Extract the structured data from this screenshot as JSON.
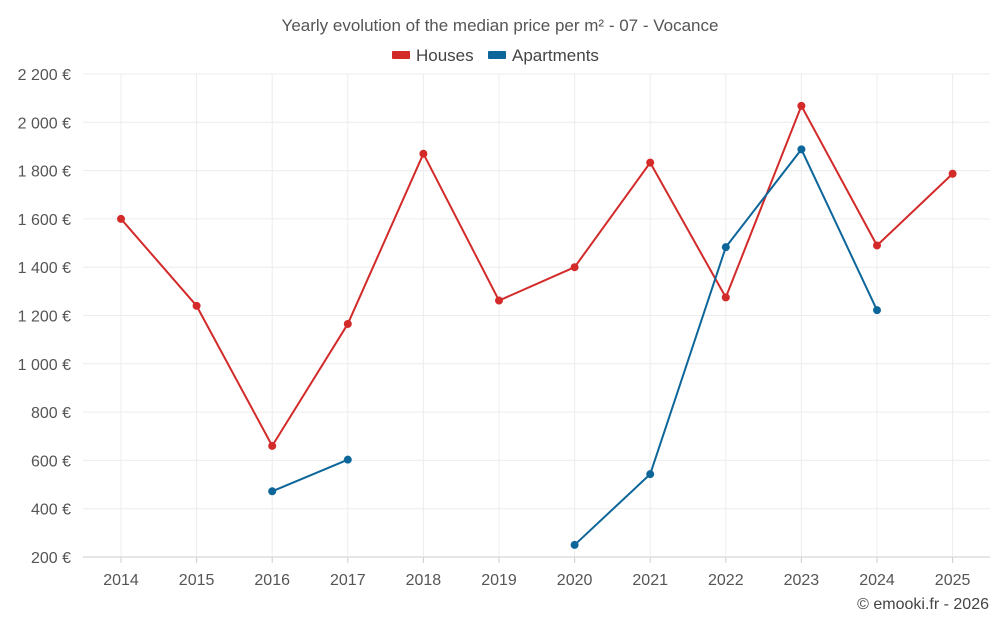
{
  "chart_data": {
    "type": "line",
    "title": "Yearly evolution of the median price per m² - 07 - Vocance",
    "categories": [
      "2014",
      "2015",
      "2016",
      "2017",
      "2018",
      "2019",
      "2020",
      "2021",
      "2022",
      "2023",
      "2024",
      "2025"
    ],
    "y_ticks": [
      "200 €",
      "400 €",
      "600 €",
      "800 €",
      "1 000 €",
      "1 200 €",
      "1 400 €",
      "1 600 €",
      "1 800 €",
      "2 000 €",
      "2 200 €"
    ],
    "ylim": [
      200,
      2200
    ],
    "series": [
      {
        "name": "Houses",
        "color": "#d32a2a",
        "values": [
          1600,
          1240,
          660,
          1165,
          1870,
          1262,
          1400,
          1833,
          1275,
          2068,
          1490,
          1787
        ]
      },
      {
        "name": "Apartments",
        "color": "#0d6699",
        "values": [
          null,
          null,
          472,
          603,
          null,
          null,
          250,
          543,
          1483,
          1888,
          1222,
          null
        ]
      }
    ],
    "legend_position": "top-center",
    "credit": "© emooki.fr - 2026"
  }
}
